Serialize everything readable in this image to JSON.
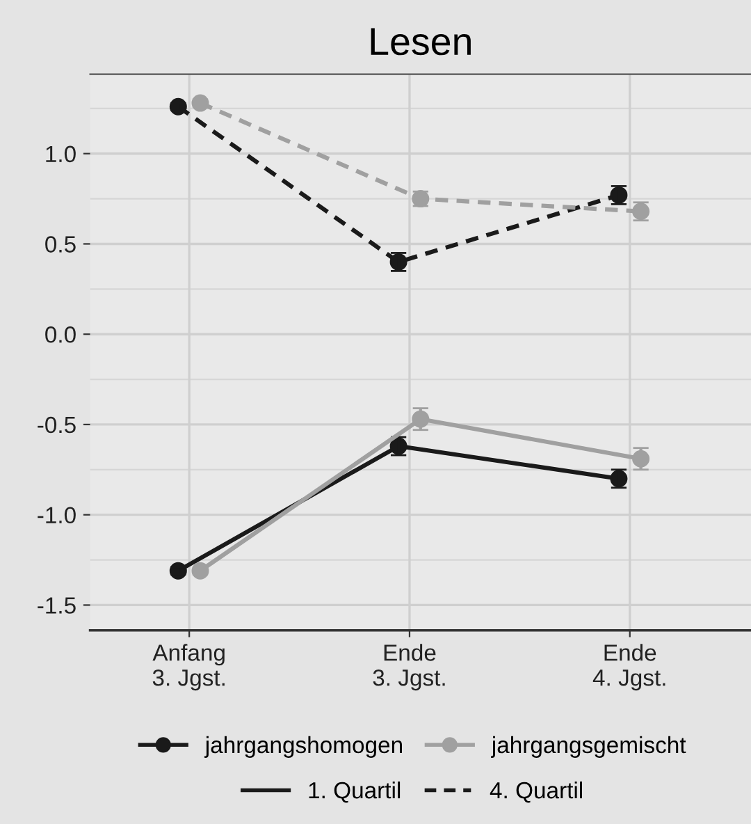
{
  "chart_data": {
    "type": "line",
    "title": "Lesen",
    "categories": [
      "Anfang\n3. Jgst.",
      "Ende\n3. Jgst.",
      "Ende\n4. Jgst."
    ],
    "series": [
      {
        "name": "jahrgangshomogen",
        "color": "#1a1a1a",
        "line_style": "solid",
        "values": [
          -1.31,
          -0.62,
          -0.8
        ],
        "errors": [
          0.02,
          0.05,
          0.05
        ]
      },
      {
        "name": "jahrgangsgemischt",
        "color": "#a0a0a0",
        "line_style": "solid",
        "values": [
          -1.31,
          -0.47,
          -0.69
        ],
        "errors": [
          0.02,
          0.06,
          0.06
        ]
      },
      {
        "color": "#1a1a1a",
        "line_style": "dashed",
        "values": [
          1.26,
          0.4,
          0.77
        ],
        "errors": [
          0.02,
          0.05,
          0.05
        ]
      },
      {
        "color": "#a0a0a0",
        "line_style": "dashed",
        "values": [
          1.28,
          0.75,
          0.68
        ],
        "errors": [
          0.02,
          0.04,
          0.05
        ]
      }
    ],
    "annotations": [
      "1. Quartil",
      "4. Quartil"
    ],
    "ylim": [
      -1.64,
      1.44
    ],
    "yticks": [
      {
        "value": -1.5,
        "label": "-1.5"
      },
      {
        "value": -1.0,
        "label": "-1.0"
      },
      {
        "value": -0.5,
        "label": "-0.5"
      },
      {
        "value": 0.0,
        "label": "0.0"
      },
      0.5,
      {
        "value": 1.0,
        "label": "1.0"
      }
    ],
    "grid": true,
    "legend": "bottom",
    "marker": "circle"
  }
}
